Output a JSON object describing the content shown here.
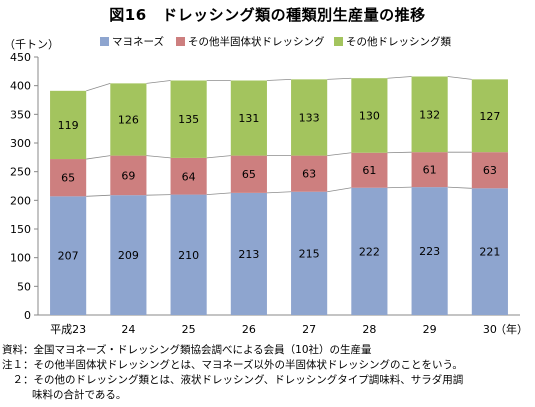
{
  "title": "図16　ドレッシング類の種類別生産量の推移",
  "unit": "（千トン）",
  "notes": {
    "source": "資料：全国マヨネーズ・ドレッシング類協会調べによる会員（10社）の生産量",
    "note1": "注１：その他半固体状ドレッシングとは、マヨネーズ以外の半固体状ドレッシングのことをいう。",
    "note2": "　２：その他のドレッシング類とは、液状ドレッシング、ドレッシングタイプ調味料、サラダ用調",
    "note2b": "味料の合計である。"
  },
  "chart_data": {
    "type": "bar",
    "stacked": true,
    "title": "図16　ドレッシング類の種類別生産量の推移",
    "ylabel": "（千トン）",
    "xlabel": "（年）",
    "ylim": [
      0,
      450
    ],
    "yticks": [
      0,
      50,
      100,
      150,
      200,
      250,
      300,
      350,
      400,
      450
    ],
    "categories": [
      "平成23",
      "24",
      "25",
      "26",
      "27",
      "28",
      "29",
      "30"
    ],
    "legend_position": "top",
    "grid": false,
    "series": [
      {
        "name": "マヨネーズ",
        "color": "#8ea5cf",
        "values": [
          207,
          209,
          210,
          213,
          215,
          222,
          223,
          221
        ]
      },
      {
        "name": "その他半固体状ドレッシング",
        "color": "#cd7f7f",
        "values": [
          65,
          69,
          64,
          65,
          63,
          61,
          61,
          63
        ]
      },
      {
        "name": "その他ドレッシング類",
        "color": "#a3c45e",
        "values": [
          119,
          126,
          135,
          131,
          133,
          130,
          132,
          127
        ]
      }
    ]
  }
}
